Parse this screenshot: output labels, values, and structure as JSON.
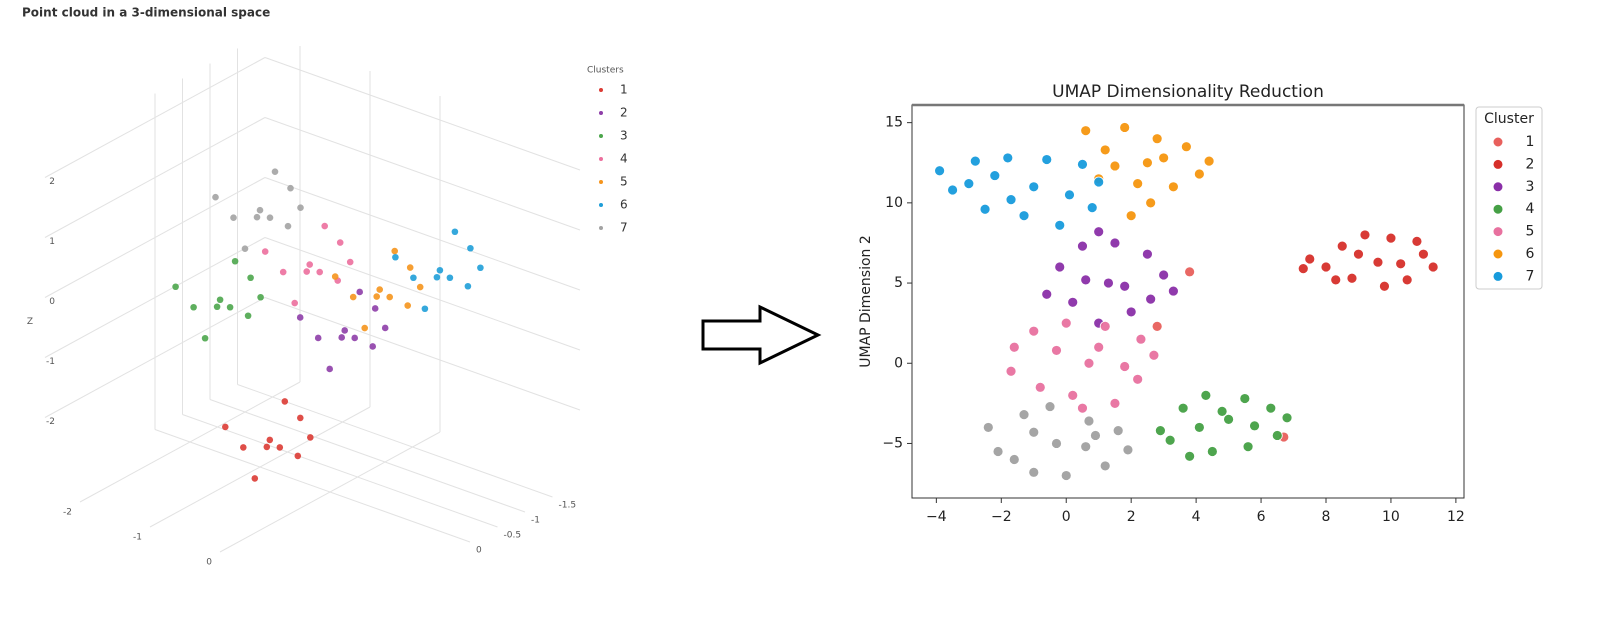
{
  "title": "Point cloud in a 3-dimensional space",
  "chart_data": [
    {
      "type": "scatter3d",
      "zlabel": "Z",
      "legend_title": "Clusters",
      "xlim": [
        -2.5,
        2
      ],
      "ylim": [
        -2,
        2
      ],
      "zlim": [
        -3.2,
        2.4
      ],
      "xticks": [
        -2,
        -1,
        0
      ],
      "yticks": [
        -1.5,
        -1,
        -0.5,
        0
      ],
      "zticks": [
        -2,
        -1,
        0,
        1,
        2
      ],
      "series": [
        {
          "name": "1",
          "color": "#dc3b34",
          "x": [
            -0.86,
            -0.56,
            -1.16,
            -0.66,
            -1.06,
            -0.46,
            -1.26,
            -0.76,
            -0.96,
            -0.36
          ],
          "y": [
            0,
            0.2,
            0.1,
            -0.3,
            -0.2,
            0,
            0.3,
            0.4,
            -0.4,
            -0.1
          ],
          "z": [
            -2.69,
            -2.59,
            -2.89,
            -2.39,
            -2.99,
            -2.79,
            -2.49,
            -3.09,
            -2.29,
            -2.49
          ]
        },
        {
          "name": "2",
          "color": "#8e3ea8",
          "x": [
            0.21,
            0.51,
            -0.09,
            0.41,
            0.01,
            0.61,
            -0.19,
            0.31,
            0.11,
            0.71
          ],
          "y": [
            0,
            0.2,
            0.1,
            -0.3,
            -0.2,
            0,
            0.3,
            0.4,
            -0.4,
            -0.1
          ],
          "z": [
            -0.42,
            -0.32,
            -0.62,
            -0.12,
            -0.72,
            -0.52,
            -0.22,
            -0.82,
            -0.02,
            -0.22
          ]
        },
        {
          "name": "3",
          "color": "#4ca64c",
          "x": [
            -1.57,
            -1.27,
            -1.87,
            -1.37,
            -1.77,
            -1.17,
            -1.97,
            -1.47,
            -1.67,
            -1.07
          ],
          "y": [
            0,
            0.2,
            0.1,
            -0.3,
            -0.2,
            0,
            0.3,
            0.4,
            -0.4,
            -0.1
          ],
          "z": [
            -0.65,
            -0.55,
            -0.85,
            -0.35,
            -0.95,
            -0.75,
            -0.45,
            -1.05,
            -0.25,
            -0.45
          ]
        },
        {
          "name": "4",
          "color": "#ec6f9d",
          "x": [
            -0.29,
            0.01,
            -0.59,
            -0.09,
            -0.49,
            0.11,
            -0.69,
            -0.19,
            -0.39,
            0.21
          ],
          "y": [
            0,
            0.2,
            0.1,
            -0.3,
            -0.2,
            0,
            0.3,
            0.4,
            -0.4,
            -0.1
          ],
          "z": [
            0.47,
            0.57,
            0.27,
            0.77,
            0.17,
            0.37,
            0.67,
            0.07,
            0.87,
            0.67
          ]
        },
        {
          "name": "5",
          "color": "#f5951d",
          "x": [
            0.71,
            1.01,
            0.41,
            0.91,
            0.51,
            1.11,
            0.31,
            0.81,
            0.61,
            1.21
          ],
          "y": [
            0,
            0.2,
            0.1,
            -0.3,
            -0.2,
            0,
            0.3,
            0.4,
            -0.4,
            -0.1
          ],
          "z": [
            0.47,
            0.57,
            0.27,
            0.77,
            0.17,
            0.37,
            0.67,
            0.07,
            0.87,
            0.67
          ]
        },
        {
          "name": "6",
          "color": "#1f9ed8",
          "x": [
            1.57,
            1.87,
            1.27,
            1.77,
            1.37,
            1.97,
            1.17,
            1.67,
            1.47,
            2.07
          ],
          "y": [
            0,
            0.2,
            0.1,
            -0.3,
            -0.2,
            0,
            0.3,
            0.4,
            -0.4,
            -0.1
          ],
          "z": [
            1.15,
            1.25,
            0.95,
            1.45,
            0.85,
            1.05,
            1.35,
            0.75,
            1.55,
            1.35
          ]
        },
        {
          "name": "7",
          "color": "#a3a3a3",
          "x": [
            -1.0,
            -0.7,
            -1.3,
            -0.8,
            -1.2,
            -0.6,
            -1.4,
            -0.9,
            -1.1,
            -0.5
          ],
          "y": [
            0,
            0.2,
            0.1,
            -0.3,
            -0.2,
            0,
            0.3,
            0.4,
            -0.4,
            -0.1
          ],
          "z": [
            1.08,
            1.18,
            0.88,
            1.38,
            0.78,
            0.98,
            1.28,
            0.68,
            1.48,
            1.28
          ]
        }
      ]
    },
    {
      "type": "scatter",
      "title": "UMAP Dimensionality Reduction",
      "ylabel": "UMAP Dimension 2",
      "legend_title": "Cluster",
      "xlim": [
        -4.75,
        12.25
      ],
      "ylim": [
        -8.4,
        16.1
      ],
      "xticks": [
        {
          "value": -4,
          "label": "−4"
        },
        {
          "value": -2,
          "label": "−2"
        },
        0,
        2,
        4,
        6,
        8,
        10,
        12
      ],
      "yticks": [
        {
          "value": -5,
          "label": "−5"
        },
        0,
        5,
        10,
        15
      ],
      "series": [
        {
          "color": "#a0a0a0",
          "x": [
            -0.3,
            -2.4,
            -2.1,
            -1.3,
            -0.5,
            0.7,
            1.6,
            1.9,
            1.2,
            0,
            -1,
            -1.6,
            0.6,
            -1,
            0.9
          ],
          "y": [
            -5,
            -4,
            -5.5,
            -3.2,
            -2.7,
            -3.6,
            -4.2,
            -5.4,
            -6.4,
            -7,
            -6.8,
            -6,
            -5.2,
            -4.3,
            -4.5
          ]
        },
        {
          "name": "1",
          "color": "#e8605c",
          "x": [
            3.8,
            6.7,
            2.8
          ],
          "y": [
            5.7,
            -4.6,
            2.3
          ]
        },
        {
          "name": "2",
          "color": "#d62f2a",
          "x": [
            9.6,
            8,
            7.5,
            8.5,
            8.8,
            10,
            10.5,
            11,
            11.3,
            9.2,
            9.8,
            8.3,
            10.8,
            9,
            10.3,
            7.3
          ],
          "y": [
            6.3,
            6,
            6.5,
            7.3,
            5.3,
            7.8,
            5.2,
            6.8,
            6,
            8,
            4.8,
            5.2,
            7.6,
            6.8,
            6.2,
            5.9
          ]
        },
        {
          "name": "3",
          "color": "#8a2fa8",
          "x": [
            1.3,
            -0.6,
            -0.2,
            0.5,
            1.5,
            2.5,
            3,
            3.3,
            2,
            1,
            0.2,
            1.8,
            0.6,
            2.6,
            1
          ],
          "y": [
            5,
            4.3,
            6,
            7.3,
            7.5,
            6.8,
            5.5,
            4.5,
            3.2,
            2.5,
            3.8,
            4.8,
            5.2,
            4,
            8.2
          ]
        },
        {
          "name": "4",
          "color": "#45a045",
          "x": [
            5,
            3.2,
            3.6,
            4.3,
            5.5,
            6.3,
            6.8,
            6.5,
            5.6,
            4.5,
            3.8,
            4.8,
            5.8,
            4.1,
            2.9
          ],
          "y": [
            -3.5,
            -4.8,
            -2.8,
            -2,
            -2.2,
            -2.8,
            -3.4,
            -4.5,
            -5.2,
            -5.5,
            -5.8,
            -3,
            -3.9,
            -4,
            -4.2
          ]
        },
        {
          "name": "5",
          "color": "#e8719f",
          "x": [
            0.7,
            -1.6,
            -1.7,
            -1,
            0,
            1.2,
            2.3,
            2.7,
            2.2,
            1.5,
            0.2,
            -0.8,
            1,
            -0.3,
            1.8,
            0.5
          ],
          "y": [
            0,
            1,
            -0.5,
            2,
            2.5,
            2.3,
            1.5,
            0.5,
            -1,
            -2.5,
            -2,
            -1.5,
            1,
            0.8,
            -0.2,
            -2.8
          ]
        },
        {
          "name": "6",
          "color": "#f5960f",
          "x": [
            2.5,
            0.6,
            1.2,
            1.8,
            2.8,
            3.7,
            4.4,
            4.1,
            3.3,
            2.6,
            2,
            1,
            1.5,
            3,
            2.2
          ],
          "y": [
            12.5,
            14.5,
            13.3,
            14.7,
            14,
            13.5,
            12.6,
            11.8,
            11,
            10,
            9.2,
            11.5,
            12.3,
            12.8,
            11.2
          ]
        },
        {
          "name": "7",
          "color": "#179bdc",
          "x": [
            -1,
            -3.9,
            -3.5,
            -2.8,
            -1.8,
            -0.6,
            0.5,
            1,
            0.8,
            -0.2,
            -1.3,
            -2.5,
            -3,
            -1.7,
            0.1,
            -2.2
          ],
          "y": [
            11,
            12,
            10.8,
            12.6,
            12.8,
            12.7,
            12.4,
            11.3,
            9.7,
            8.6,
            9.2,
            9.6,
            11.2,
            10.2,
            10.5,
            11.7
          ]
        }
      ]
    }
  ]
}
